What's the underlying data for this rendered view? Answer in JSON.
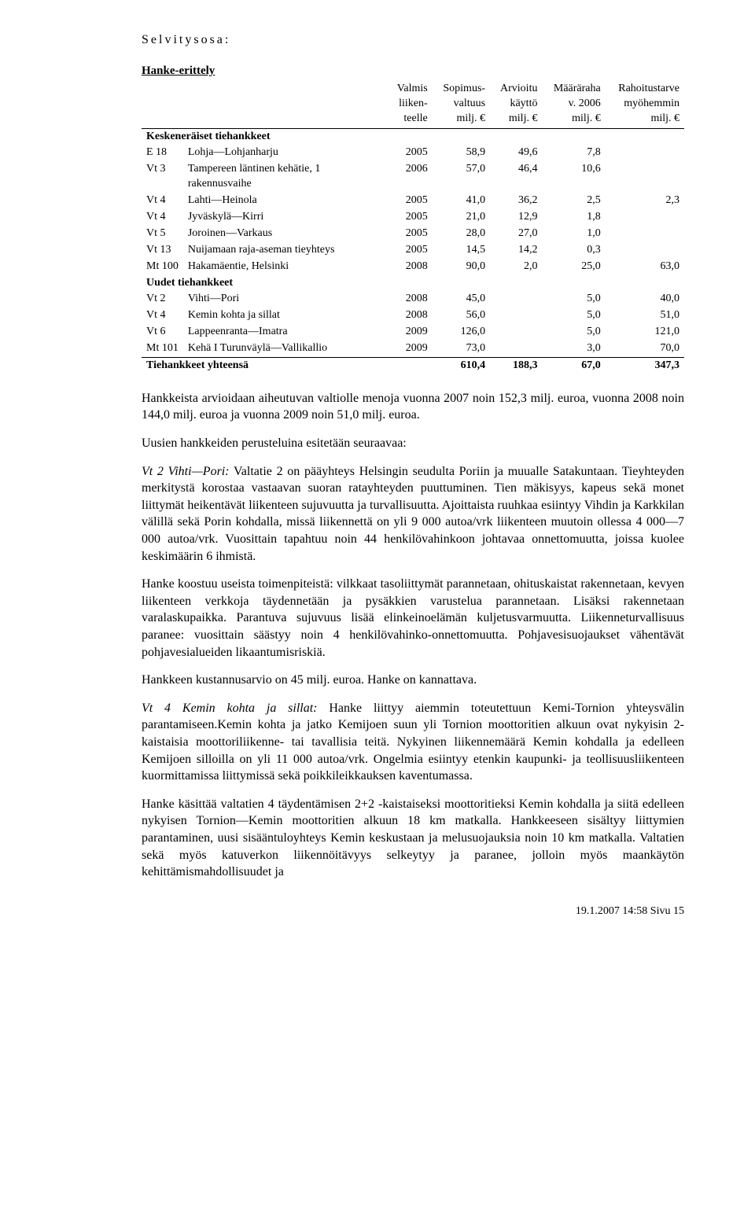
{
  "section_label": "Selvitysosa:",
  "table_title": "Hanke-erittely",
  "columns": {
    "c1": "",
    "c2": "",
    "c3_l1": "Valmis",
    "c3_l2": "liiken-",
    "c3_l3": "teelle",
    "c4_l1": "Sopimus-",
    "c4_l2": "valtuus",
    "c4_l3": "milj. €",
    "c5_l1": "Arvioitu",
    "c5_l2": "käyttö",
    "c5_l3": "milj. €",
    "c6_l1": "Määräraha",
    "c6_l2": "v. 2006",
    "c6_l3": "milj. €",
    "c7_l1": "Rahoitustarve",
    "c7_l2": "myöhemmin",
    "c7_l3": "milj. €"
  },
  "group1": "Keskeneräiset tiehankkeet",
  "rows1": [
    {
      "code": "E 18",
      "desc": "Lohja—Lohjanharju",
      "year": "2005",
      "v1": "58,9",
      "v2": "49,6",
      "v3": "7,8",
      "v4": ""
    },
    {
      "code": "Vt 3",
      "desc": "Tampereen läntinen kehätie, 1 rakennusvaihe",
      "year": "2006",
      "v1": "57,0",
      "v2": "46,4",
      "v3": "10,6",
      "v4": ""
    },
    {
      "code": "Vt 4",
      "desc": "Lahti—Heinola",
      "year": "2005",
      "v1": "41,0",
      "v2": "36,2",
      "v3": "2,5",
      "v4": "2,3"
    },
    {
      "code": "Vt 4",
      "desc": "Jyväskylä—Kirri",
      "year": "2005",
      "v1": "21,0",
      "v2": "12,9",
      "v3": "1,8",
      "v4": ""
    },
    {
      "code": "Vt 5",
      "desc": "Joroinen—Varkaus",
      "year": "2005",
      "v1": "28,0",
      "v2": "27,0",
      "v3": "1,0",
      "v4": ""
    },
    {
      "code": "Vt 13",
      "desc": "Nuijamaan raja-aseman tieyhteys",
      "year": "2005",
      "v1": "14,5",
      "v2": "14,2",
      "v3": "0,3",
      "v4": ""
    },
    {
      "code": "Mt 100",
      "desc": "Hakamäentie, Helsinki",
      "year": "2008",
      "v1": "90,0",
      "v2": "2,0",
      "v3": "25,0",
      "v4": "63,0"
    }
  ],
  "group2": "Uudet tiehankkeet",
  "rows2": [
    {
      "code": "Vt 2",
      "desc": "Vihti—Pori",
      "year": "2008",
      "v1": "45,0",
      "v2": "",
      "v3": "5,0",
      "v4": "40,0"
    },
    {
      "code": "Vt 4",
      "desc": "Kemin kohta ja sillat",
      "year": "2008",
      "v1": "56,0",
      "v2": "",
      "v3": "5,0",
      "v4": "51,0"
    },
    {
      "code": "Vt 6",
      "desc": "Lappeenranta—Imatra",
      "year": "2009",
      "v1": "126,0",
      "v2": "",
      "v3": "5,0",
      "v4": "121,0"
    },
    {
      "code": "Mt 101",
      "desc": "Kehä I Turunväylä—Vallikallio",
      "year": "2009",
      "v1": "73,0",
      "v2": "",
      "v3": "3,0",
      "v4": "70,0"
    }
  ],
  "totals": {
    "label": "Tiehankkeet yhteensä",
    "v1": "610,4",
    "v2": "188,3",
    "v3": "67,0",
    "v4": "347,3"
  },
  "paragraphs": [
    "Hankkeista arvioidaan aiheutuvan valtiolle menoja vuonna 2007 noin 152,3 milj. euroa, vuonna 2008 noin 144,0 milj. euroa ja vuonna 2009 noin 51,0 milj. euroa.",
    "Uusien hankkeiden perusteluina esitetään seuraavaa:",
    "<i>Vt 2 Vihti—Pori:</i> Valtatie 2 on pääyhteys Helsingin seudulta Poriin ja muualle Satakuntaan. Tieyhteyden merkitystä korostaa vastaavan suoran ratayhteyden puuttuminen. Tien mäkisyys, kapeus sekä monet liittymät heikentävät liikenteen sujuvuutta ja turvallisuutta. Ajoittaista ruuhkaa esiintyy Vihdin ja Karkkilan välillä sekä Porin kohdalla, missä liikennettä on yli 9 000 autoa/vrk liikenteen muutoin ollessa 4 000—7 000 autoa/vrk. Vuosittain tapahtuu noin 44 henkilövahinkoon johtavaa onnettomuutta, joissa kuolee keskimäärin 6 ihmistä.",
    "Hanke koostuu useista toimenpiteistä: vilkkaat tasoliittymät parannetaan, ohituskaistat rakennetaan, kevyen liikenteen verkkoja täydennetään ja pysäkkien varustelua parannetaan. Lisäksi rakennetaan varalaskupaikka. Parantuva sujuvuus lisää elinkeinoelämän kuljetusvarmuutta. Liikenneturvallisuus paranee: vuosittain säästyy noin 4 henkilövahinko-onnettomuutta. Pohjavesisuojaukset vähentävät pohjavesialueiden likaantumisriskiä.",
    "Hankkeen kustannusarvio on 45 milj. euroa. Hanke on kannattava.",
    "<i>Vt 4 Kemin kohta ja sillat:</i> Hanke liittyy aiemmin toteutettuun Kemi-Tornion yhteysvälin parantamiseen.Kemin kohta ja jatko Kemijoen suun yli Tornion moottoritien alkuun ovat nykyisin 2-kaistaisia moottoriliikenne- tai tavallisia teitä. Nykyinen liikennemäärä Kemin kohdalla ja edelleen Kemijoen silloilla on yli 11 000 autoa/vrk. Ongelmia esiintyy etenkin kaupunki- ja teollisuusliikenteen kuormittamissa liittymissä sekä poikkileikkauksen kaventumassa.",
    "Hanke käsittää valtatien 4 täydentämisen 2+2 -kaistaiseksi moottoritieksi Kemin kohdalla ja siitä edelleen nykyisen Tornion—Kemin moottoritien alkuun 18 km matkalla. Hankkeeseen sisältyy liittymien parantaminen, uusi sisääntuloyhteys Kemin keskustaan ja melusuojauksia noin 10 km matkalla. Valtatien sekä myös katuverkon liikennöitävyys selkeytyy ja paranee, jolloin myös maankäytön kehittämismahdollisuudet ja"
  ],
  "footer": "19.1.2007 14:58 Sivu 15"
}
